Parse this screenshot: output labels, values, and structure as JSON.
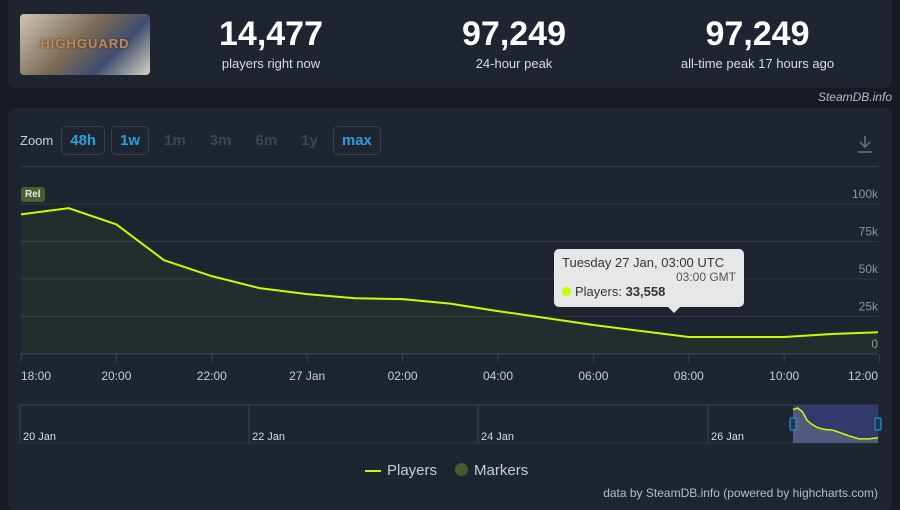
{
  "header": {
    "game_banner_text": "HIGHGUARD",
    "stats": [
      {
        "value": "14,477",
        "label": "players right now"
      },
      {
        "value": "97,249",
        "label": "24-hour peak"
      },
      {
        "value": "97,249",
        "label": "all-time peak 17 hours ago"
      }
    ],
    "credit": "SteamDB.info"
  },
  "zoom": {
    "label": "Zoom",
    "options": [
      {
        "label": "48h",
        "enabled": true
      },
      {
        "label": "1w",
        "enabled": true
      },
      {
        "label": "1m",
        "enabled": false
      },
      {
        "label": "3m",
        "enabled": false
      },
      {
        "label": "6m",
        "enabled": false
      },
      {
        "label": "1y",
        "enabled": false
      },
      {
        "label": "max",
        "enabled": true
      }
    ],
    "download_icon": "download-icon"
  },
  "chart_data": {
    "type": "area",
    "x": [
      "26 Jan 18:00",
      "26 Jan 19:00",
      "26 Jan 20:00",
      "26 Jan 21:00",
      "26 Jan 22:00",
      "26 Jan 23:00",
      "27 Jan 00:00",
      "27 Jan 01:00",
      "27 Jan 02:00",
      "27 Jan 03:00",
      "27 Jan 04:00",
      "27 Jan 05:00",
      "27 Jan 06:00",
      "27 Jan 07:00",
      "27 Jan 08:00",
      "27 Jan 09:00",
      "27 Jan 10:00",
      "27 Jan 11:00",
      "27 Jan 12:00"
    ],
    "series": [
      {
        "name": "Players",
        "color": "#c6ff00",
        "values": [
          93100,
          97249,
          86400,
          62500,
          51900,
          43900,
          39900,
          37200,
          36600,
          33558,
          28600,
          24000,
          19300,
          15300,
          11300,
          11300,
          11300,
          13300,
          14477
        ]
      }
    ],
    "x_tick_labels": [
      "18:00",
      "20:00",
      "22:00",
      "27 Jan",
      "02:00",
      "04:00",
      "06:00",
      "08:00",
      "10:00",
      "12:00"
    ],
    "y_tick_labels": [
      "0",
      "25k",
      "50k",
      "75k",
      "100k"
    ],
    "ylim": [
      0,
      100000
    ],
    "grid": true,
    "marker_label": "Rel",
    "legend": {
      "position": "bottom",
      "items": [
        "Players",
        "Markers"
      ]
    },
    "navigator_labels": [
      "20 Jan",
      "22 Jan",
      "24 Jan",
      "26 Jan"
    ],
    "tooltip": {
      "title": "Tuesday 27 Jan, 03:00 UTC",
      "subtitle": "03:00 GMT",
      "series_label": "Players:",
      "value": "33,558"
    }
  },
  "footer": "data by SteamDB.info (powered by highcharts.com)"
}
